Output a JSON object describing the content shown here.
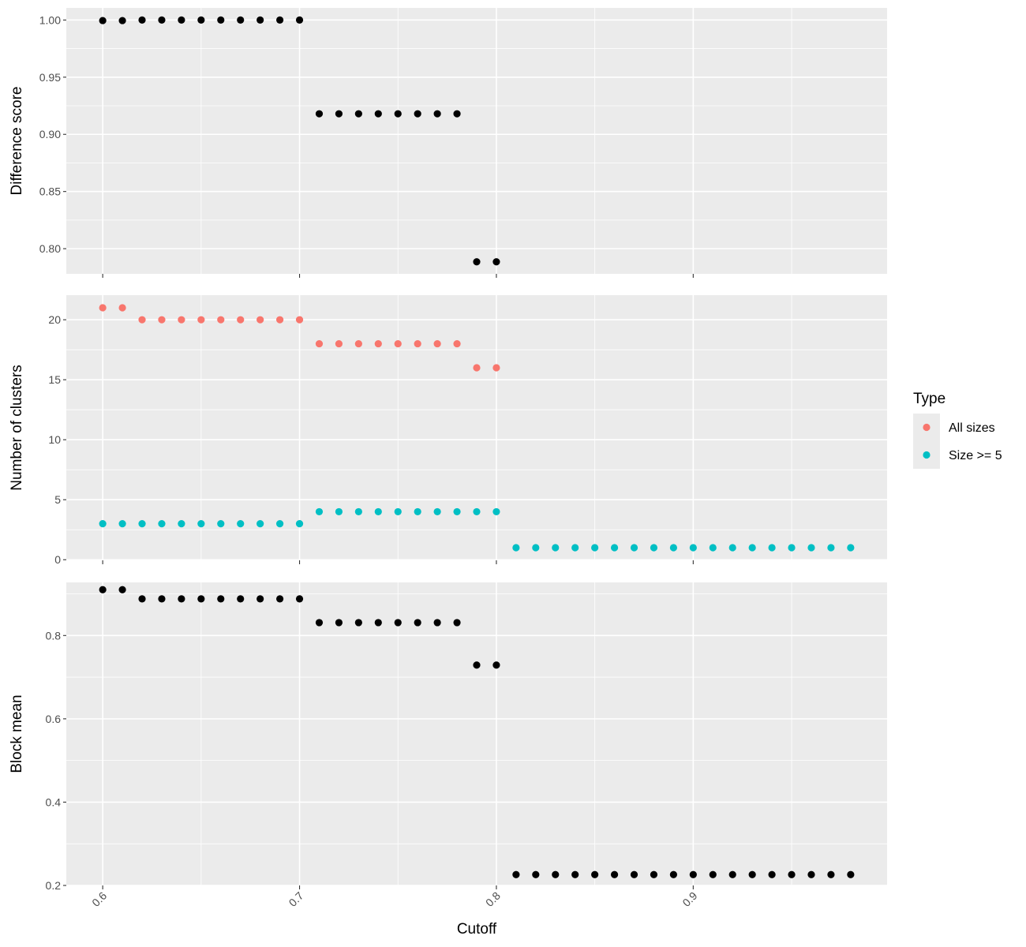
{
  "chart_data": [
    {
      "type": "scatter",
      "ylabel": "Difference score",
      "xlim": [
        0.5815,
        0.9985
      ],
      "ylim": [
        0.778,
        1.0106
      ],
      "yticks": [
        0.8,
        0.85,
        0.9,
        0.95,
        1.0
      ],
      "ytick_labels": [
        "0.80",
        "0.85",
        "0.90",
        "0.95",
        "1.00"
      ],
      "grid": true,
      "series": [
        {
          "color": "#000000",
          "x": [
            0.6,
            0.61,
            0.62,
            0.63,
            0.64,
            0.65,
            0.66,
            0.67,
            0.68,
            0.69,
            0.7,
            0.71,
            0.72,
            0.73,
            0.74,
            0.75,
            0.76,
            0.77,
            0.78,
            0.79,
            0.8
          ],
          "y": [
            0.9995,
            0.9995,
            1.0,
            1.0,
            1.0,
            1.0,
            1.0,
            1.0,
            1.0,
            1.0,
            1.0,
            0.918,
            0.918,
            0.918,
            0.918,
            0.918,
            0.918,
            0.918,
            0.918,
            0.7885,
            0.7885
          ]
        }
      ]
    },
    {
      "type": "scatter",
      "ylabel": "Number of clusters",
      "xlim": [
        0.5815,
        0.9985
      ],
      "ylim": [
        -0.05,
        22.05
      ],
      "yticks": [
        0,
        5,
        10,
        15,
        20
      ],
      "ytick_labels": [
        "0",
        "5",
        "10",
        "15",
        "20"
      ],
      "grid": true,
      "legend": {
        "title": "Type",
        "placement": "right",
        "entries": [
          {
            "label": "All sizes",
            "color": "#F8766D"
          },
          {
            "label": "Size >= 5",
            "color": "#00BFC4"
          }
        ]
      },
      "series": [
        {
          "name": "All sizes",
          "color": "#F8766D",
          "x": [
            0.6,
            0.61,
            0.62,
            0.63,
            0.64,
            0.65,
            0.66,
            0.67,
            0.68,
            0.69,
            0.7,
            0.71,
            0.72,
            0.73,
            0.74,
            0.75,
            0.76,
            0.77,
            0.78,
            0.79,
            0.8
          ],
          "y": [
            21,
            21,
            20,
            20,
            20,
            20,
            20,
            20,
            20,
            20,
            20,
            18,
            18,
            18,
            18,
            18,
            18,
            18,
            18,
            16,
            16
          ]
        },
        {
          "name": "Size >= 5",
          "color": "#00BFC4",
          "x": [
            0.6,
            0.61,
            0.62,
            0.63,
            0.64,
            0.65,
            0.66,
            0.67,
            0.68,
            0.69,
            0.7,
            0.71,
            0.72,
            0.73,
            0.74,
            0.75,
            0.76,
            0.77,
            0.78,
            0.79,
            0.8,
            0.81,
            0.82,
            0.83,
            0.84,
            0.85,
            0.86,
            0.87,
            0.88,
            0.89,
            0.9,
            0.91,
            0.92,
            0.93,
            0.94,
            0.95,
            0.96,
            0.97,
            0.98
          ],
          "y": [
            3,
            3,
            3,
            3,
            3,
            3,
            3,
            3,
            3,
            3,
            3,
            4,
            4,
            4,
            4,
            4,
            4,
            4,
            4,
            4,
            4,
            1,
            1,
            1,
            1,
            1,
            1,
            1,
            1,
            1,
            1,
            1,
            1,
            1,
            1,
            1,
            1,
            1,
            1
          ]
        }
      ]
    },
    {
      "type": "scatter",
      "ylabel": "Block mean",
      "xlabel": "Cutoff",
      "xlim": [
        0.5815,
        0.9985
      ],
      "ylim": [
        0.2,
        0.9275
      ],
      "yticks": [
        0.2,
        0.4,
        0.6,
        0.8
      ],
      "ytick_labels": [
        "0.2",
        "0.4",
        "0.6",
        "0.8"
      ],
      "xticks": [
        0.6,
        0.7,
        0.8,
        0.9
      ],
      "xtick_labels": [
        "0.6",
        "0.7",
        "0.8",
        "0.9"
      ],
      "grid": true,
      "series": [
        {
          "color": "#000000",
          "x": [
            0.6,
            0.61,
            0.62,
            0.63,
            0.64,
            0.65,
            0.66,
            0.67,
            0.68,
            0.69,
            0.7,
            0.71,
            0.72,
            0.73,
            0.74,
            0.75,
            0.76,
            0.77,
            0.78,
            0.79,
            0.8,
            0.81,
            0.82,
            0.83,
            0.84,
            0.85,
            0.86,
            0.87,
            0.88,
            0.89,
            0.9,
            0.91,
            0.92,
            0.93,
            0.94,
            0.95,
            0.96,
            0.97,
            0.98
          ],
          "y": [
            0.91,
            0.91,
            0.888,
            0.888,
            0.888,
            0.888,
            0.888,
            0.888,
            0.888,
            0.888,
            0.888,
            0.831,
            0.831,
            0.831,
            0.831,
            0.831,
            0.831,
            0.831,
            0.831,
            0.729,
            0.729,
            0.226,
            0.226,
            0.226,
            0.226,
            0.226,
            0.226,
            0.226,
            0.226,
            0.226,
            0.226,
            0.226,
            0.226,
            0.226,
            0.226,
            0.226,
            0.226,
            0.226,
            0.226
          ]
        }
      ]
    }
  ]
}
